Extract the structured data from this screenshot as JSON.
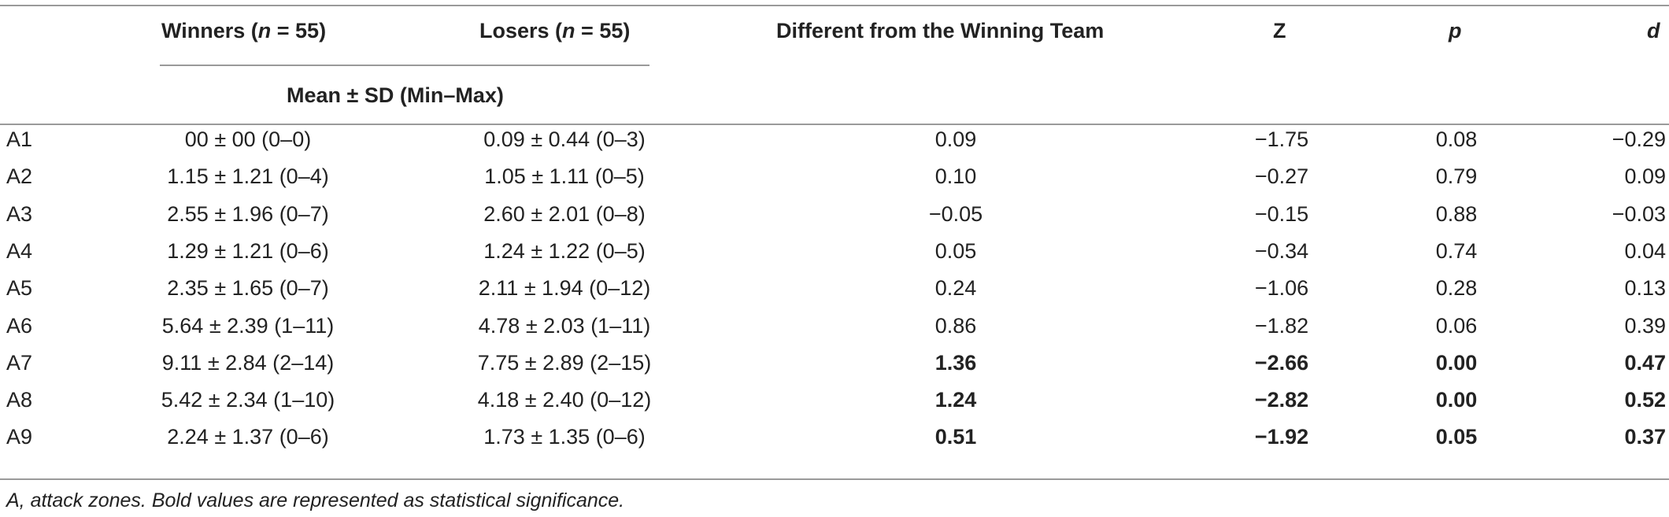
{
  "header": {
    "winners_pre": "Winners (",
    "winners_n": "n",
    "winners_post": " = 55)",
    "losers_pre": "Losers (",
    "losers_n": "n",
    "losers_post": " = 55)",
    "diff": "Different from the Winning Team",
    "z": "Z",
    "p": "p",
    "d": "d",
    "mean_sd": "Mean ± SD (Min–Max)"
  },
  "rows": [
    {
      "zone": "A1",
      "winners": "00 ± 00 (0–0)",
      "losers": "0.09 ± 0.44 (0–3)",
      "diff": "0.09",
      "z": "−1.75",
      "p": "0.08",
      "d": "−0.29",
      "bold": false
    },
    {
      "zone": "A2",
      "winners": "1.15 ± 1.21 (0–4)",
      "losers": "1.05 ± 1.11 (0–5)",
      "diff": "0.10",
      "z": "−0.27",
      "p": "0.79",
      "d": "0.09",
      "bold": false
    },
    {
      "zone": "A3",
      "winners": "2.55 ± 1.96 (0–7)",
      "losers": "2.60 ± 2.01 (0–8)",
      "diff": "−0.05",
      "z": "−0.15",
      "p": "0.88",
      "d": "−0.03",
      "bold": false
    },
    {
      "zone": "A4",
      "winners": "1.29 ± 1.21 (0–6)",
      "losers": "1.24 ± 1.22 (0–5)",
      "diff": "0.05",
      "z": "−0.34",
      "p": "0.74",
      "d": "0.04",
      "bold": false
    },
    {
      "zone": "A5",
      "winners": "2.35 ± 1.65 (0–7)",
      "losers": "2.11 ± 1.94 (0–12)",
      "diff": "0.24",
      "z": "−1.06",
      "p": "0.28",
      "d": "0.13",
      "bold": false
    },
    {
      "zone": "A6",
      "winners": "5.64 ± 2.39 (1–11)",
      "losers": "4.78 ± 2.03 (1–11)",
      "diff": "0.86",
      "z": "−1.82",
      "p": "0.06",
      "d": "0.39",
      "bold": false
    },
    {
      "zone": "A7",
      "winners": "9.11 ± 2.84 (2–14)",
      "losers": "7.75 ± 2.89 (2–15)",
      "diff": "1.36",
      "z": "−2.66",
      "p": "0.00",
      "d": "0.47",
      "bold": true
    },
    {
      "zone": "A8",
      "winners": "5.42 ± 2.34 (1–10)",
      "losers": "4.18 ± 2.40 (0–12)",
      "diff": "1.24",
      "z": "−2.82",
      "p": "0.00",
      "d": "0.52",
      "bold": true
    },
    {
      "zone": "A9",
      "winners": "2.24 ± 1.37 (0–6)",
      "losers": "1.73 ± 1.35 (0–6)",
      "diff": "0.51",
      "z": "−1.92",
      "p": "0.05",
      "d": "0.37",
      "bold": true
    }
  ],
  "footnote": "A, attack zones. Bold values are represented as statistical significance."
}
